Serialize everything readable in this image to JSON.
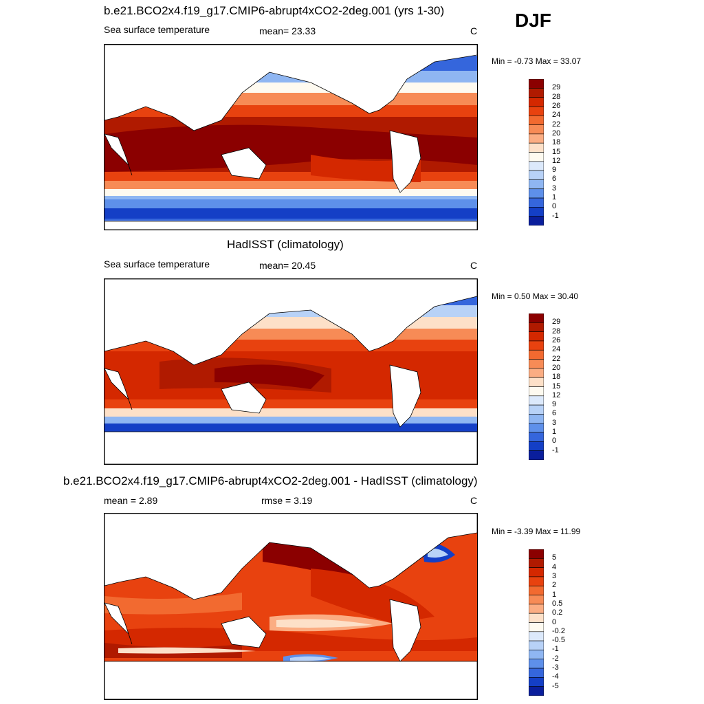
{
  "season": "DJF",
  "panels": [
    {
      "title": "b.e21.BCO2x4.f19_g17.CMIP6-abrupt4xCO2-2deg.001 (yrs 1-30)",
      "left_label": "Sea surface temperature",
      "mid_label": "mean=  23.33",
      "units": "C",
      "minmax": "Min =  -0.73 Max =  33.07"
    },
    {
      "title": "HadISST (climatology)",
      "left_label": "Sea surface temperature",
      "mid_label": "mean=  20.45",
      "units": "C",
      "minmax": "Min =   0.50 Max =  30.40"
    },
    {
      "title": "b.e21.BCO2x4.f19_g17.CMIP6-abrupt4xCO2-2deg.001 - HadISST (climatology)",
      "left_label": "mean =   2.89",
      "mid_label": "rmse =   3.19",
      "units": "C",
      "minmax": "Min =  -3.39 Max =  11.99"
    }
  ],
  "colorbar_sst": {
    "labels": [
      "29",
      "28",
      "26",
      "24",
      "22",
      "20",
      "18",
      "15",
      "12",
      "9",
      "6",
      "3",
      "1",
      "0",
      "-1"
    ],
    "colors": [
      "#8b0000",
      "#b01a00",
      "#d42800",
      "#e8420f",
      "#f26a30",
      "#f78b56",
      "#fbad83",
      "#fde0c8",
      "#fefaf0",
      "#dce9fb",
      "#b8d2f7",
      "#8fb6f2",
      "#5e90ea",
      "#3566dc",
      "#143fc6",
      "#0a1e9c"
    ]
  },
  "colorbar_diff": {
    "labels": [
      "5",
      "4",
      "3",
      "2",
      "1",
      "0.5",
      "0.2",
      "0",
      "-0.2",
      "-0.5",
      "-1",
      "-2",
      "-3",
      "-4",
      "-5"
    ],
    "colors": [
      "#8b0000",
      "#b01a00",
      "#d42800",
      "#e8420f",
      "#f26a30",
      "#f78b56",
      "#fbad83",
      "#fde0c8",
      "#fefaf0",
      "#dce9fb",
      "#b8d2f7",
      "#8fb6f2",
      "#5e90ea",
      "#3566dc",
      "#143fc6",
      "#0a1e9c"
    ]
  }
}
